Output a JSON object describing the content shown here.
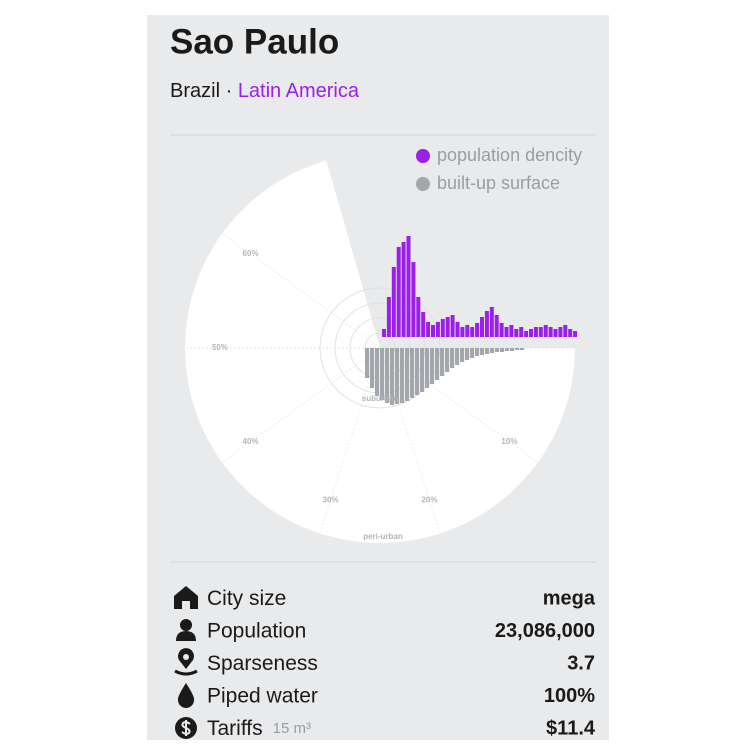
{
  "header": {
    "title": "Sao Paulo",
    "country": "Brazil",
    "separator": "·",
    "region": "Latin America"
  },
  "legend": [
    {
      "label": "population dencity",
      "color": "#9b1fe8"
    },
    {
      "label": "built-up surface",
      "color": "#a3a6aa"
    }
  ],
  "chart": {
    "radial_labels": [
      "60%",
      "50%",
      "40%",
      "30%",
      "20%",
      "10%"
    ],
    "zone_labels": [
      "suburban",
      "peri-urban"
    ],
    "population_density": [
      8,
      40,
      70,
      90,
      95,
      101,
      75,
      40,
      25,
      15,
      12,
      15,
      18,
      20,
      22,
      15,
      10,
      12,
      10,
      14,
      20,
      26,
      30,
      22,
      14,
      10,
      12,
      8,
      10,
      6,
      8,
      10,
      10,
      12,
      10,
      8,
      10,
      12,
      8,
      6
    ],
    "built_up_surface": [
      30,
      40,
      48,
      52,
      55,
      57,
      56,
      55,
      53,
      50,
      47,
      44,
      40,
      36,
      32,
      28,
      24,
      20,
      17,
      14,
      12,
      10,
      8,
      7,
      6,
      5,
      4,
      4,
      3,
      3,
      2,
      2
    ]
  },
  "stats": [
    {
      "label": "City size",
      "value": "mega"
    },
    {
      "label": "Population",
      "value": "23,086,000"
    },
    {
      "label": "Sparseness",
      "value": "3.7"
    },
    {
      "label": "Piped water",
      "value": "100%"
    },
    {
      "label": "Tariffs",
      "unit": "15 m³",
      "value": "$11.4"
    }
  ]
}
